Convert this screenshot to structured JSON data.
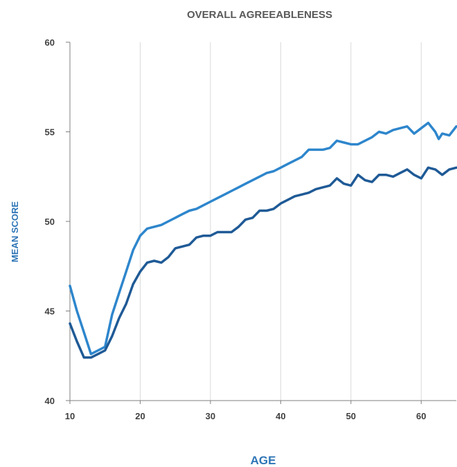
{
  "chart_data": {
    "type": "line",
    "title": "OVERALL AGREEABLENESS",
    "xlabel": "AGE",
    "ylabel": "MEAN SCORE",
    "xlim": [
      10,
      65
    ],
    "ylim": [
      40,
      60
    ],
    "xticks": [
      "10",
      "20",
      "30",
      "40",
      "50",
      "60"
    ],
    "yticks": [
      "40",
      "45",
      "50",
      "55",
      "60"
    ],
    "grid": "vertical",
    "legend": "none",
    "series": [
      {
        "color": "#2e86cc",
        "x": [
          10,
          11,
          12,
          13,
          14,
          15,
          16,
          17,
          18,
          19,
          20,
          21,
          22,
          23,
          24,
          25,
          26,
          27,
          28,
          29,
          30,
          31,
          32,
          33,
          34,
          35,
          36,
          37,
          38,
          39,
          40,
          41,
          42,
          43,
          44,
          45,
          46,
          47,
          48,
          49,
          50,
          51,
          52,
          53,
          54,
          55,
          56,
          57,
          58,
          59,
          60,
          61,
          62,
          62.5,
          63,
          64,
          65
        ],
        "values": [
          46.4,
          45.0,
          43.8,
          42.6,
          42.8,
          43.0,
          44.8,
          46.0,
          47.2,
          48.4,
          49.2,
          49.6,
          49.7,
          49.8,
          50.0,
          50.2,
          50.4,
          50.6,
          50.7,
          50.9,
          51.1,
          51.3,
          51.5,
          51.7,
          51.9,
          52.1,
          52.3,
          52.5,
          52.7,
          52.8,
          53.0,
          53.2,
          53.4,
          53.6,
          54.0,
          54.0,
          54.0,
          54.1,
          54.5,
          54.4,
          54.3,
          54.3,
          54.5,
          54.7,
          55.0,
          54.9,
          55.1,
          55.2,
          55.3,
          54.9,
          55.2,
          55.5,
          55.0,
          54.6,
          54.9,
          54.8,
          55.3
        ]
      },
      {
        "color": "#1f5a96",
        "x": [
          10,
          11,
          12,
          13,
          14,
          15,
          16,
          17,
          18,
          19,
          20,
          21,
          22,
          23,
          24,
          25,
          26,
          27,
          28,
          29,
          30,
          31,
          32,
          33,
          34,
          35,
          36,
          37,
          38,
          39,
          40,
          41,
          42,
          43,
          44,
          45,
          46,
          47,
          48,
          49,
          50,
          51,
          52,
          53,
          54,
          55,
          56,
          57,
          58,
          59,
          60,
          61,
          62,
          63,
          64,
          65
        ],
        "values": [
          44.3,
          43.3,
          42.4,
          42.4,
          42.6,
          42.8,
          43.6,
          44.6,
          45.4,
          46.5,
          47.2,
          47.7,
          47.8,
          47.7,
          48.0,
          48.5,
          48.6,
          48.7,
          49.1,
          49.2,
          49.2,
          49.4,
          49.4,
          49.4,
          49.7,
          50.1,
          50.2,
          50.6,
          50.6,
          50.7,
          51.0,
          51.2,
          51.4,
          51.5,
          51.6,
          51.8,
          51.9,
          52.0,
          52.4,
          52.1,
          52.0,
          52.6,
          52.3,
          52.2,
          52.6,
          52.6,
          52.5,
          52.7,
          52.9,
          52.6,
          52.4,
          53.0,
          52.9,
          52.6,
          52.9,
          53.0
        ]
      }
    ]
  }
}
